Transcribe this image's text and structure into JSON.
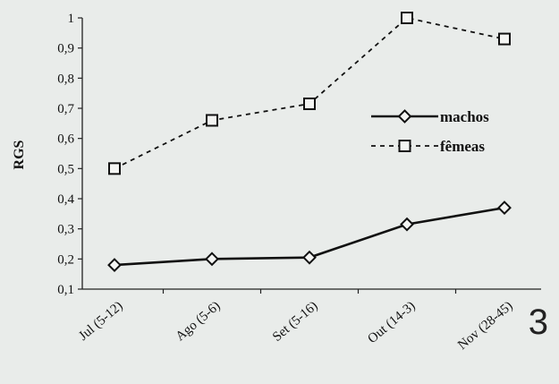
{
  "chart_data": {
    "type": "line",
    "categories": [
      "Jul (5-12)",
      "Ago (5-6)",
      "Set (5-16)",
      "Out (14-3)",
      "Nov (28-45)"
    ],
    "series": [
      {
        "name": "machos",
        "values": [
          0.18,
          0.2,
          0.205,
          0.315,
          0.37
        ],
        "style": "solid",
        "marker": "diamond",
        "color": "#111111"
      },
      {
        "name": "fêmeas",
        "values": [
          0.5,
          0.66,
          0.715,
          1.0,
          0.93
        ],
        "style": "dashed",
        "marker": "square",
        "color": "#111111"
      }
    ],
    "ylabel": "RGS",
    "xlabel": "",
    "ylim": [
      0.1,
      1
    ],
    "yticks": [
      "0,1",
      "0,2",
      "0,3",
      "0,4",
      "0,5",
      "0,6",
      "0,7",
      "0,8",
      "0,9",
      "1"
    ],
    "grid": false,
    "legend_position": "right"
  },
  "page_number": "3"
}
